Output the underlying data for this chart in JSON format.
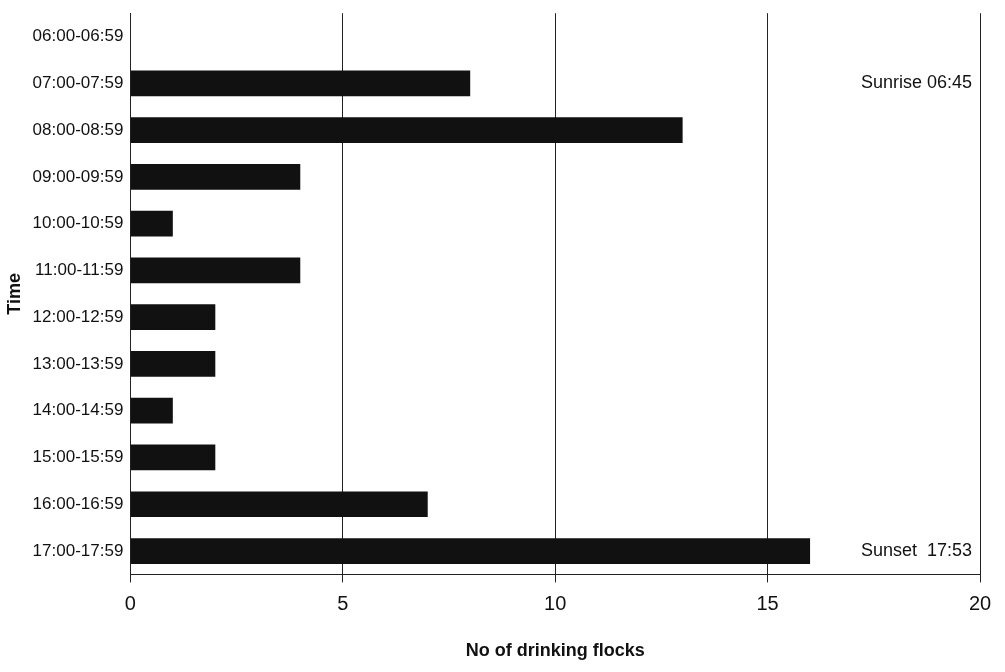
{
  "chart_data": {
    "type": "bar",
    "orientation": "horizontal",
    "xlabel": "No of drinking flocks",
    "ylabel": "Time",
    "categories": [
      "06:00-06:59",
      "07:00-07:59",
      "08:00-08:59",
      "09:00-09:59",
      "10:00-10:59",
      "11:00-11:59",
      "12:00-12:59",
      "13:00-13:59",
      "14:00-14:59",
      "15:00-15:59",
      "16:00-16:59",
      "17:00-17:59"
    ],
    "values": [
      0,
      8,
      13,
      4,
      1,
      4,
      2,
      2,
      1,
      2,
      7,
      16
    ],
    "color": "#111111",
    "xlim": [
      0,
      20
    ],
    "xticks": [
      0,
      5,
      10,
      15,
      20
    ],
    "grid": "x",
    "legend": false,
    "annotations": [
      "Sunrise 06:45",
      "Sunset  17:53"
    ]
  }
}
